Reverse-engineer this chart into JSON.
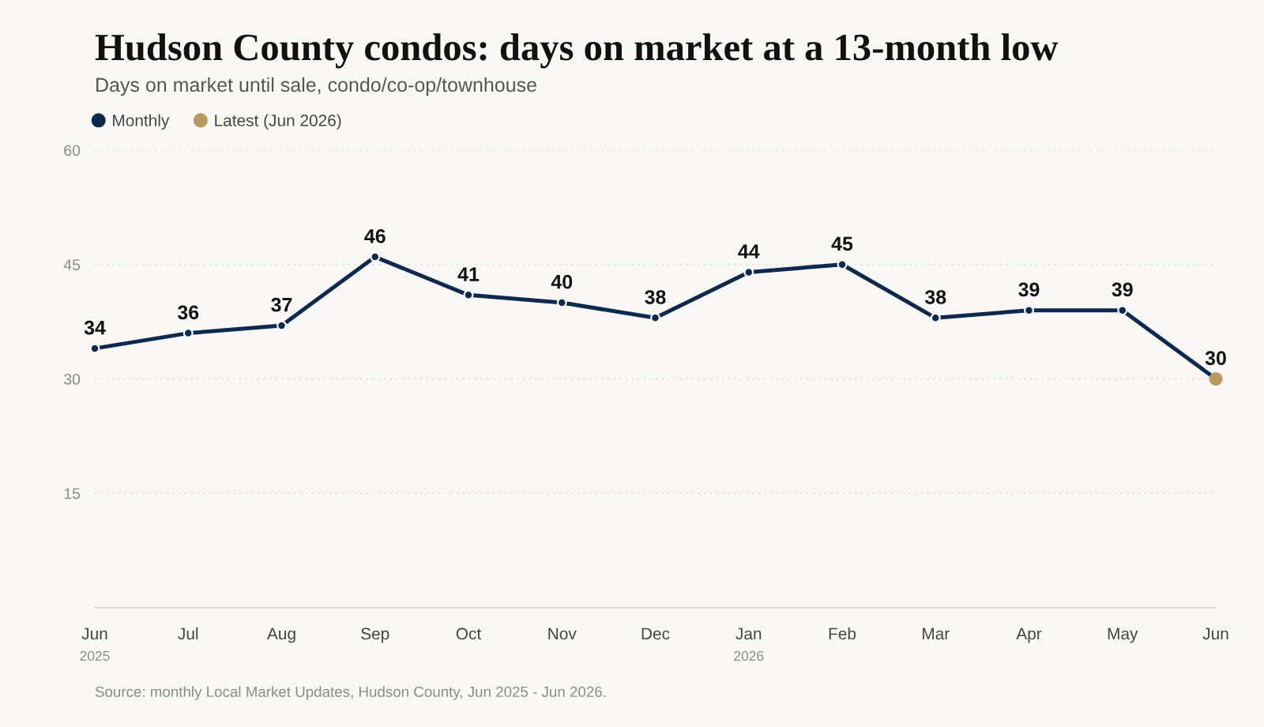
{
  "chart_data": {
    "type": "line",
    "title": "Hudson County condos: days on market at a 13-month low",
    "subtitle": "Days on market until sale, condo/co-op/townhouse",
    "categories": [
      "Jun\n2025",
      "Jul",
      "Aug",
      "Sep",
      "Oct",
      "Nov",
      "Dec",
      "Jan\n2026",
      "Feb",
      "Mar",
      "Apr",
      "May",
      "Jun"
    ],
    "series": [
      {
        "name": "Monthly",
        "color": "#0d2a4e",
        "marker": "circle",
        "line_style": "solid",
        "data_labels": true,
        "values": [
          34,
          36,
          37,
          46,
          41,
          40,
          38,
          44,
          45,
          38,
          39,
          39,
          30
        ]
      },
      {
        "name": "Latest (Jun 2026)",
        "type": "scatter",
        "color": "#b89a5e",
        "marker": "circle",
        "values": [
          null,
          null,
          null,
          null,
          null,
          null,
          null,
          null,
          null,
          null,
          null,
          null,
          30
        ]
      }
    ],
    "ylim": [
      0,
      60
    ],
    "yticks": [
      15,
      30,
      45,
      60
    ],
    "grid": "y",
    "legend": "top left",
    "annotations": [
      "Source: monthly Local Market Updates, Hudson County, Jun 2025 - Jun 2026."
    ]
  }
}
